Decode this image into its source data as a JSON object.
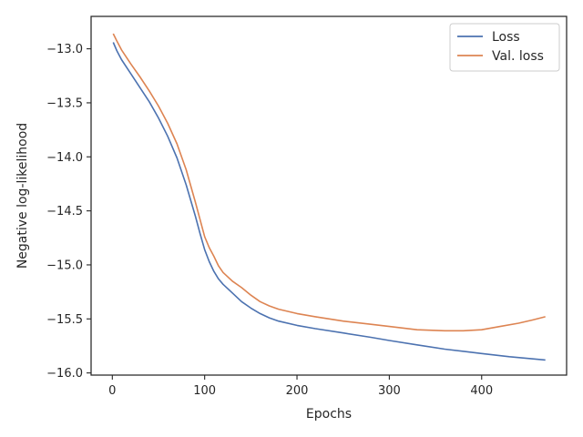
{
  "chart_data": {
    "type": "line",
    "xlabel": "Epochs",
    "ylabel": "Negative log-likelihood",
    "xlim": [
      -23,
      492
    ],
    "ylim": [
      -16.02,
      -12.7
    ],
    "xticks": [
      0,
      100,
      200,
      300,
      400
    ],
    "xtick_labels": [
      "0",
      "100",
      "200",
      "300",
      "400"
    ],
    "yticks": [
      -16.0,
      -15.5,
      -15.0,
      -14.5,
      -14.0,
      -13.5,
      -13.0
    ],
    "ytick_labels": [
      "−16.0",
      "−15.5",
      "−15.0",
      "−14.5",
      "−14.0",
      "−13.5",
      "−13.0"
    ],
    "grid": false,
    "legend_position": "top-right",
    "series": [
      {
        "name": "Loss",
        "color": "#4c72b0",
        "x": [
          1,
          5,
          10,
          20,
          30,
          40,
          50,
          60,
          70,
          80,
          90,
          95,
          100,
          105,
          110,
          115,
          120,
          130,
          140,
          150,
          160,
          170,
          180,
          200,
          220,
          250,
          280,
          300,
          330,
          360,
          400,
          430,
          469
        ],
        "y": [
          -12.94,
          -13.02,
          -13.1,
          -13.23,
          -13.36,
          -13.49,
          -13.64,
          -13.81,
          -14.01,
          -14.26,
          -14.55,
          -14.71,
          -14.86,
          -14.97,
          -15.06,
          -15.13,
          -15.18,
          -15.26,
          -15.34,
          -15.4,
          -15.45,
          -15.49,
          -15.52,
          -15.56,
          -15.59,
          -15.63,
          -15.67,
          -15.7,
          -15.74,
          -15.78,
          -15.82,
          -15.85,
          -15.88
        ]
      },
      {
        "name": "Val. loss",
        "color": "#dd8452",
        "x": [
          1,
          5,
          10,
          20,
          30,
          40,
          50,
          60,
          70,
          80,
          90,
          95,
          100,
          105,
          110,
          115,
          120,
          130,
          140,
          150,
          160,
          170,
          180,
          200,
          220,
          250,
          280,
          300,
          330,
          360,
          380,
          400,
          420,
          440,
          455,
          469
        ],
        "y": [
          -12.86,
          -12.93,
          -13.01,
          -13.14,
          -13.26,
          -13.39,
          -13.53,
          -13.69,
          -13.88,
          -14.12,
          -14.42,
          -14.58,
          -14.74,
          -14.84,
          -14.92,
          -15.01,
          -15.07,
          -15.15,
          -15.21,
          -15.28,
          -15.34,
          -15.38,
          -15.41,
          -15.45,
          -15.48,
          -15.52,
          -15.55,
          -15.57,
          -15.6,
          -15.61,
          -15.61,
          -15.6,
          -15.57,
          -15.54,
          -15.51,
          -15.48
        ]
      }
    ]
  }
}
